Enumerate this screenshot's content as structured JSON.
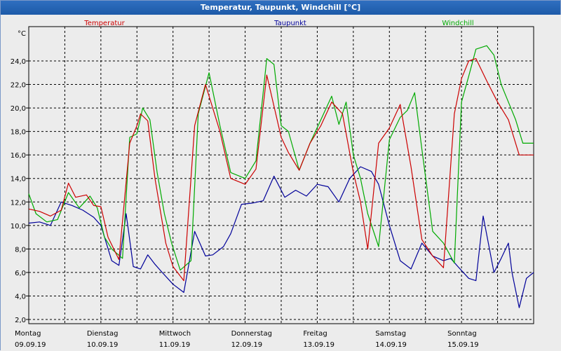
{
  "window": {
    "title": "Temperatur, Taupunkt, Windchill [°C]"
  },
  "chart_data": {
    "type": "line",
    "title": "Temperatur, Taupunkt, Windchill [°C]",
    "ylabel": "°C",
    "ylim": [
      1.5,
      26
    ],
    "yticks": [
      2.0,
      4.0,
      6.0,
      8.0,
      10.0,
      12.0,
      14.0,
      16.0,
      18.0,
      20.0,
      22.0,
      24.0
    ],
    "ytick_labels": [
      "2,0",
      "4,0",
      "6,0",
      "8,0",
      "10,0",
      "12,0",
      "14,0",
      "16,0",
      "18,0",
      "20,0",
      "22,0",
      "24,0"
    ],
    "xlim": [
      0,
      7
    ],
    "x_unit": "days since 09.09.19 00:00",
    "x_gridlines_halfdays": true,
    "grid": true,
    "xticks": [
      {
        "day": "Montag",
        "date": "09.09.19"
      },
      {
        "day": "Dienstag",
        "date": "10.09.19"
      },
      {
        "day": "Mittwoch",
        "date": "11.09.19"
      },
      {
        "day": "Donnerstag",
        "date": "12.09.19"
      },
      {
        "day": "Freitag",
        "date": "13.09.19"
      },
      {
        "day": "Samstag",
        "date": "14.09.19"
      },
      {
        "day": "Sonntag",
        "date": "15.09.19"
      }
    ],
    "series": [
      {
        "name": "Temperatur",
        "color": "#cc0000",
        "x": [
          0,
          0.15,
          0.3,
          0.45,
          0.55,
          0.65,
          0.8,
          0.9,
          1.0,
          1.1,
          1.25,
          1.4,
          1.5,
          1.55,
          1.65,
          1.75,
          1.9,
          2.0,
          2.15,
          2.3,
          2.45,
          2.65,
          2.8,
          3.0,
          3.15,
          3.3,
          3.5,
          3.6,
          3.75,
          3.9,
          4.05,
          4.2,
          4.35,
          4.5,
          4.6,
          4.7,
          4.85,
          5.0,
          5.15,
          5.3,
          5.45,
          5.6,
          5.75,
          5.9,
          6.0,
          6.1,
          6.2,
          6.35,
          6.5,
          6.65,
          6.8,
          6.95,
          7.0
        ],
        "values": [
          11.4,
          11.2,
          10.8,
          11.3,
          13.6,
          12.4,
          12.6,
          11.7,
          11.6,
          9.0,
          7.1,
          17.0,
          18.5,
          19.5,
          18.9,
          14.0,
          8.5,
          6.5,
          5.3,
          18.5,
          22.0,
          18.0,
          14.0,
          13.5,
          14.8,
          22.8,
          17.5,
          16.2,
          14.7,
          17.0,
          18.5,
          20.5,
          19.5,
          14.5,
          12.0,
          8.0,
          17.0,
          18.3,
          20.3,
          15.0,
          8.8,
          7.4,
          6.4,
          19.5,
          22.5,
          24.0,
          24.2,
          22.3,
          20.5,
          19.0,
          16.0,
          16.0,
          16.0
        ]
      },
      {
        "name": "Taupunkt",
        "color": "#000099",
        "x": [
          0,
          0.15,
          0.3,
          0.45,
          0.6,
          0.75,
          0.9,
          1.0,
          1.15,
          1.25,
          1.35,
          1.45,
          1.55,
          1.65,
          1.75,
          1.85,
          2.0,
          2.15,
          2.3,
          2.45,
          2.55,
          2.7,
          2.8,
          2.95,
          3.1,
          3.25,
          3.4,
          3.55,
          3.7,
          3.85,
          4.0,
          4.15,
          4.3,
          4.45,
          4.6,
          4.75,
          4.85,
          5.0,
          5.15,
          5.3,
          5.45,
          5.6,
          5.75,
          5.85,
          5.95,
          6.1,
          6.2,
          6.3,
          6.45,
          6.55,
          6.65,
          6.7,
          6.8,
          6.9,
          7.0
        ],
        "values": [
          10.2,
          10.3,
          10.0,
          12.0,
          11.7,
          11.3,
          10.7,
          10.0,
          7.0,
          6.6,
          11.0,
          6.5,
          6.3,
          7.5,
          6.7,
          6.0,
          5.0,
          4.3,
          9.5,
          7.4,
          7.5,
          8.2,
          9.3,
          11.8,
          11.9,
          12.1,
          14.2,
          12.4,
          13.0,
          12.5,
          13.5,
          13.3,
          12.0,
          14.0,
          15.0,
          14.6,
          13.5,
          10.0,
          7.0,
          6.3,
          8.5,
          7.4,
          7.0,
          7.2,
          6.5,
          5.5,
          5.3,
          10.8,
          6.0,
          7.2,
          8.5,
          6.0,
          3.0,
          5.5,
          6.0
        ]
      },
      {
        "name": "Windchill",
        "color": "#00aa00",
        "x": [
          0,
          0.1,
          0.25,
          0.4,
          0.55,
          0.7,
          0.85,
          0.95,
          1.05,
          1.15,
          1.3,
          1.4,
          1.5,
          1.58,
          1.68,
          1.78,
          1.88,
          1.98,
          2.1,
          2.25,
          2.35,
          2.5,
          2.65,
          2.8,
          3.0,
          3.15,
          3.3,
          3.4,
          3.5,
          3.6,
          3.75,
          3.9,
          4.05,
          4.2,
          4.3,
          4.4,
          4.5,
          4.6,
          4.7,
          4.85,
          5.0,
          5.15,
          5.25,
          5.35,
          5.45,
          5.6,
          5.75,
          5.9,
          6.0,
          6.1,
          6.2,
          6.35,
          6.45,
          6.55,
          6.65,
          6.75,
          6.85,
          6.95,
          7.0
        ],
        "values": [
          12.7,
          11.0,
          10.3,
          10.5,
          12.8,
          11.5,
          12.5,
          11.5,
          9.0,
          8.0,
          7.2,
          17.5,
          17.8,
          20.0,
          19.0,
          14.5,
          11.0,
          8.5,
          6.2,
          7.0,
          19.5,
          23.0,
          18.5,
          14.5,
          14.0,
          15.5,
          24.2,
          23.7,
          18.5,
          18.0,
          14.7,
          17.0,
          19.0,
          21.0,
          18.6,
          20.5,
          16.0,
          14.0,
          11.0,
          8.2,
          17.3,
          19.2,
          19.8,
          21.3,
          16.5,
          9.5,
          8.5,
          6.8,
          20.5,
          22.7,
          25.0,
          25.3,
          24.5,
          22.0,
          20.5,
          19.0,
          17.0,
          17.0,
          17.0
        ]
      }
    ]
  }
}
